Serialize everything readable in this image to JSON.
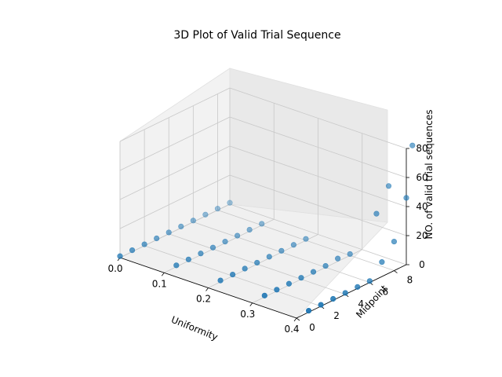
{
  "chart_data": {
    "type": "scatter3d",
    "title": "3D Plot of Valid Trial Sequence",
    "xlabel": "Uniformity",
    "ylabel": "Midpoint",
    "zlabel": "NO. of valid trial sequences",
    "xlim": [
      0,
      0.4
    ],
    "ylim": [
      0,
      9
    ],
    "zlim": [
      0,
      80
    ],
    "xticks": [
      "0.0",
      "0.1",
      "0.2",
      "0.3",
      "0.4"
    ],
    "yticks": [
      "0",
      "2",
      "4",
      "6",
      "8"
    ],
    "zticks": [
      "0",
      "20",
      "40",
      "60",
      "80"
    ],
    "grid": true,
    "marker_color": "#1f77b4",
    "points": [
      {
        "x": 0.0,
        "y": 0,
        "z": 1
      },
      {
        "x": 0.0,
        "y": 1,
        "z": 1
      },
      {
        "x": 0.0,
        "y": 2,
        "z": 1
      },
      {
        "x": 0.0,
        "y": 3,
        "z": 1
      },
      {
        "x": 0.0,
        "y": 4,
        "z": 1
      },
      {
        "x": 0.0,
        "y": 5,
        "z": 1
      },
      {
        "x": 0.0,
        "y": 6,
        "z": 1
      },
      {
        "x": 0.0,
        "y": 7,
        "z": 1
      },
      {
        "x": 0.0,
        "y": 8,
        "z": 1
      },
      {
        "x": 0.0,
        "y": 9,
        "z": 1
      },
      {
        "x": 0.1,
        "y": 1,
        "z": 1
      },
      {
        "x": 0.1,
        "y": 2,
        "z": 1
      },
      {
        "x": 0.1,
        "y": 3,
        "z": 1
      },
      {
        "x": 0.1,
        "y": 4,
        "z": 1
      },
      {
        "x": 0.1,
        "y": 5,
        "z": 1
      },
      {
        "x": 0.1,
        "y": 6,
        "z": 1
      },
      {
        "x": 0.1,
        "y": 7,
        "z": 1
      },
      {
        "x": 0.1,
        "y": 8,
        "z": 1
      },
      {
        "x": 0.2,
        "y": 1,
        "z": 1
      },
      {
        "x": 0.2,
        "y": 2,
        "z": 1
      },
      {
        "x": 0.2,
        "y": 3,
        "z": 1
      },
      {
        "x": 0.2,
        "y": 4,
        "z": 1
      },
      {
        "x": 0.2,
        "y": 5,
        "z": 1
      },
      {
        "x": 0.2,
        "y": 6,
        "z": 1
      },
      {
        "x": 0.2,
        "y": 7,
        "z": 1
      },
      {
        "x": 0.2,
        "y": 8,
        "z": 1
      },
      {
        "x": 0.3,
        "y": 1,
        "z": 1
      },
      {
        "x": 0.3,
        "y": 2,
        "z": 1
      },
      {
        "x": 0.3,
        "y": 3,
        "z": 1
      },
      {
        "x": 0.3,
        "y": 4,
        "z": 1
      },
      {
        "x": 0.3,
        "y": 5,
        "z": 1
      },
      {
        "x": 0.3,
        "y": 6,
        "z": 1
      },
      {
        "x": 0.3,
        "y": 7,
        "z": 2
      },
      {
        "x": 0.3,
        "y": 8,
        "z": 1
      },
      {
        "x": 0.4,
        "y": 1,
        "z": 1
      },
      {
        "x": 0.4,
        "y": 2,
        "z": 1
      },
      {
        "x": 0.4,
        "y": 3,
        "z": 1
      },
      {
        "x": 0.4,
        "y": 4,
        "z": 1
      },
      {
        "x": 0.4,
        "y": 5,
        "z": 1
      },
      {
        "x": 0.4,
        "y": 6,
        "z": 1
      },
      {
        "x": 0.4,
        "y": 7,
        "z": 10
      },
      {
        "x": 0.4,
        "y": 8,
        "z": 20
      },
      {
        "x": 0.4,
        "y": 9,
        "z": 46
      },
      {
        "x": 0.36,
        "y": 8,
        "z": 35
      },
      {
        "x": 0.36,
        "y": 9,
        "z": 50
      },
      {
        "x": 0.4,
        "y": 9.5,
        "z": 80
      }
    ]
  }
}
